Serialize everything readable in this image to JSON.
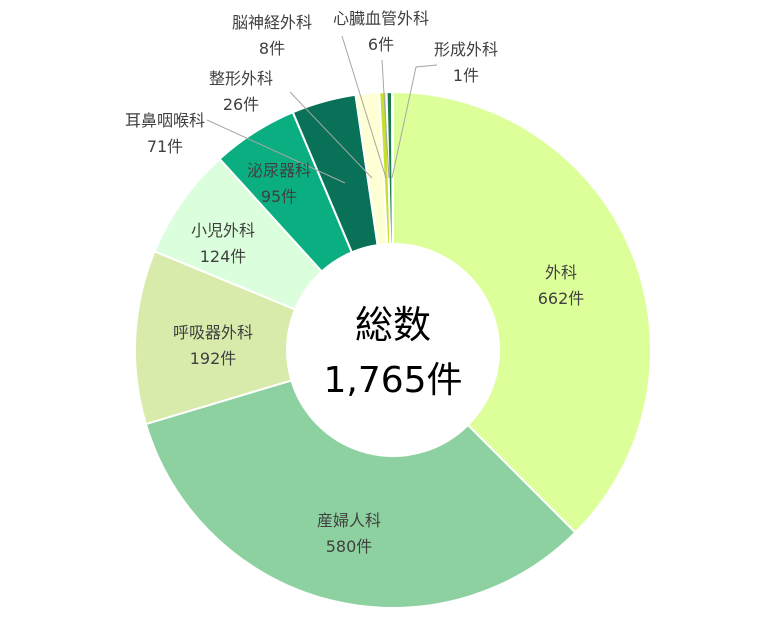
{
  "chart_data": {
    "type": "pie",
    "center_label": {
      "title": "総数",
      "total": "1,765件"
    },
    "total": 1765,
    "unit": "件",
    "slices": [
      {
        "name": "外科",
        "value": 662,
        "value_label": "662件",
        "color": "#DDFF99"
      },
      {
        "name": "産婦人科",
        "value": 580,
        "value_label": "580件",
        "color": "#8ED1A0"
      },
      {
        "name": "呼吸器外科",
        "value": 192,
        "value_label": "192件",
        "color": "#D8EBAA"
      },
      {
        "name": "小児外科",
        "value": 124,
        "value_label": "124件",
        "color": "#DBFFDC"
      },
      {
        "name": "泌尿器科",
        "value": 95,
        "value_label": "95件",
        "color": "#0AAE80"
      },
      {
        "name": "耳鼻咽喉科",
        "value": 71,
        "value_label": "71件",
        "color": "#087157"
      },
      {
        "name": "整形外科",
        "value": 26,
        "value_label": "26件",
        "color": "#FFFFD6"
      },
      {
        "name": "脳神経外科",
        "value": 8,
        "value_label": "8件",
        "color": "#C6E02E"
      },
      {
        "name": "心臓血管外科",
        "value": 6,
        "value_label": "6件",
        "color": "#1E7B4B"
      },
      {
        "name": "形成外科",
        "value": 1,
        "value_label": "1件",
        "color": "#1F4E79"
      }
    ]
  }
}
